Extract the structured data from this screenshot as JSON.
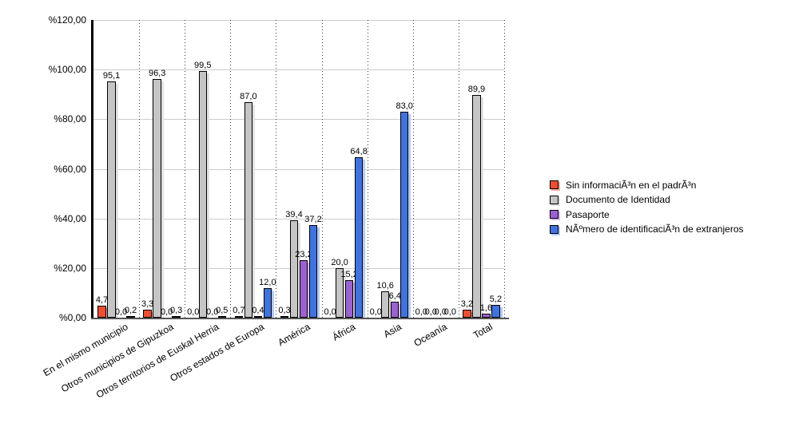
{
  "chart_data": {
    "type": "bar",
    "title": "",
    "categories": [
      "En el mismo municipio",
      "Otros municipios de Gipuzkoa",
      "Otros territorios de Euskal Herria",
      "Otros estados de Europa",
      "América",
      "África",
      "Asia",
      "Oceanía",
      "Total"
    ],
    "series": [
      {
        "name": "Sin informaciÃ³n en el padrÃ³n",
        "color": "#ee4e34",
        "shadow_color": "#f5ae9e",
        "values": [
          4.7,
          3.3,
          0.0,
          0.7,
          0.3,
          0.0,
          0.0,
          0.0,
          3.2
        ]
      },
      {
        "name": "Documento de Identidad",
        "color": "#c5c5c5",
        "shadow_color": "#e2e2e2",
        "values": [
          95.1,
          96.3,
          99.5,
          87.0,
          39.4,
          20.0,
          10.6,
          0.0,
          89.9
        ]
      },
      {
        "name": "Pasaporte",
        "color": "#9a63cf",
        "shadow_color": "#d4beee",
        "values": [
          0.0,
          0.0,
          0.0,
          0.4,
          23.2,
          15.2,
          6.4,
          0.0,
          1.6
        ]
      },
      {
        "name": "NÃºmero de identificaciÃ³n de extranjeros",
        "color": "#4173de",
        "shadow_color": "#b5caf2",
        "values": [
          0.2,
          0.3,
          0.5,
          12.0,
          37.2,
          64.8,
          83.0,
          0.0,
          5.2
        ]
      }
    ],
    "ylim": [
      0,
      120
    ],
    "y_tick_values": [
      0,
      20,
      40,
      60,
      80,
      100,
      120
    ],
    "y_tick_labels": [
      "%0,00",
      "%20,00",
      "%40,00",
      "%60,00",
      "%80,00",
      "%100,00",
      "%120,00"
    ],
    "value_labels_shown": true,
    "decimal_separator": ",",
    "legend_position": "right",
    "grid": {
      "horizontal": "solid light gray",
      "vertical": "dotted category separators"
    }
  }
}
